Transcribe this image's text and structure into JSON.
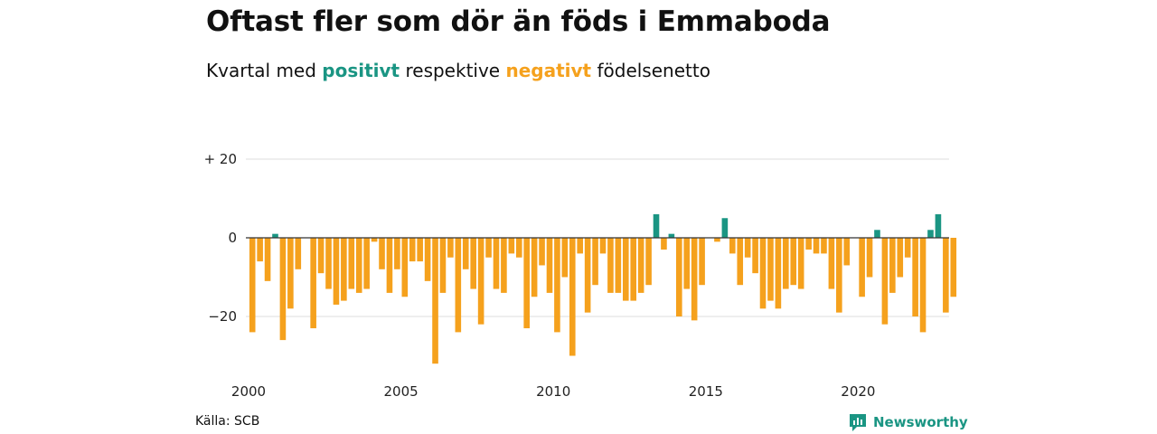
{
  "title": "Oftast fler som dör än föds i Emmaboda",
  "subtitle": {
    "prefix": "Kvartal med ",
    "positive": "positivt",
    "middle": " respektive ",
    "negative": "negativt",
    "suffix": " födelsenetto"
  },
  "source": "Källa: SCB",
  "brand": {
    "name": "Newsworthy",
    "icon": "newsworthy-logo-icon"
  },
  "colors": {
    "positive": "#1a9583",
    "negative": "#f5a11d",
    "grid": "#dddddd",
    "zero": "#333333"
  },
  "chart_data": {
    "type": "bar",
    "x": [
      "2000K1",
      "2000K2",
      "2000K3",
      "2000K4",
      "2001K1",
      "2001K2",
      "2001K3",
      "2001K4",
      "2002K1",
      "2002K2",
      "2002K3",
      "2002K4",
      "2003K1",
      "2003K2",
      "2003K3",
      "2003K4",
      "2004K1",
      "2004K2",
      "2004K3",
      "2004K4",
      "2005K1",
      "2005K2",
      "2005K3",
      "2005K4",
      "2006K1",
      "2006K2",
      "2006K3",
      "2006K4",
      "2007K1",
      "2007K2",
      "2007K3",
      "2007K4",
      "2008K1",
      "2008K2",
      "2008K3",
      "2008K4",
      "2009K1",
      "2009K2",
      "2009K3",
      "2009K4",
      "2010K1",
      "2010K2",
      "2010K3",
      "2010K4",
      "2011K1",
      "2011K2",
      "2011K3",
      "2011K4",
      "2012K1",
      "2012K2",
      "2012K3",
      "2012K4",
      "2013K1",
      "2013K2",
      "2013K3",
      "2013K4",
      "2014K1",
      "2014K2",
      "2014K3",
      "2014K4",
      "2015K1",
      "2015K2",
      "2015K3",
      "2015K4",
      "2016K1",
      "2016K2",
      "2016K3",
      "2016K4",
      "2017K1",
      "2017K2",
      "2017K3",
      "2017K4",
      "2018K1",
      "2018K2",
      "2018K3",
      "2018K4",
      "2019K1",
      "2019K2",
      "2019K3",
      "2019K4",
      "2020K1",
      "2020K2",
      "2020K3",
      "2020K4",
      "2021K1",
      "2021K2",
      "2021K3",
      "2021K4",
      "2022K1",
      "2022K2",
      "2022K3",
      "2022K4",
      "2023K1"
    ],
    "values": [
      -24,
      -6,
      -11,
      1,
      -26,
      -18,
      -8,
      0,
      -23,
      -9,
      -13,
      -17,
      -16,
      -13,
      -14,
      -13,
      -1,
      -8,
      -14,
      -8,
      -15,
      -6,
      -6,
      -11,
      -32,
      -14,
      -5,
      -24,
      -8,
      -13,
      -22,
      -5,
      -13,
      -14,
      -4,
      -5,
      -23,
      -15,
      -7,
      -14,
      -24,
      -10,
      -30,
      -4,
      -19,
      -12,
      -4,
      -14,
      -14,
      -16,
      -16,
      -14,
      -12,
      6,
      -3,
      1,
      -20,
      -13,
      -21,
      -12,
      0,
      -1,
      5,
      -4,
      -12,
      -5,
      -9,
      -18,
      -16,
      -18,
      -13,
      -12,
      -13,
      -3,
      -4,
      -4,
      -13,
      -19,
      -7,
      0,
      -15,
      -10,
      2,
      -22,
      -14,
      -10,
      -5,
      -20,
      -24,
      2,
      6,
      -19,
      -15
    ],
    "x_ticks": [
      "2000",
      "2005",
      "2010",
      "2015",
      "2020"
    ],
    "y_ticks": [
      {
        "value": 20,
        "label": "+ 20"
      },
      {
        "value": 0,
        "label": "0"
      },
      {
        "value": -20,
        "label": "−20"
      }
    ],
    "ylim": [
      -34,
      22
    ],
    "grid": true
  }
}
